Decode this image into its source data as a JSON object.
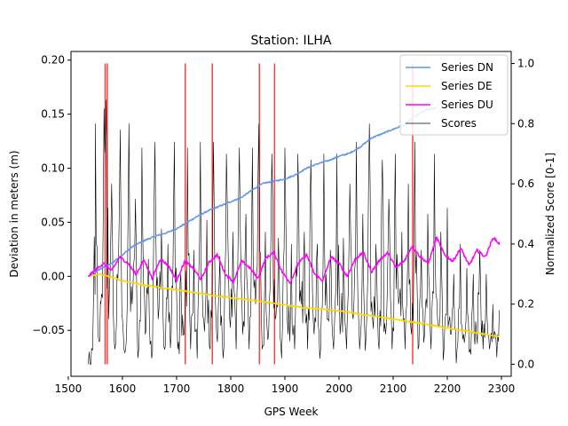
{
  "chart_data": {
    "type": "line",
    "title": "Station: ILHA",
    "xlabel": "GPS Week",
    "ylabel": "Deviation in meters (m)",
    "y2label": "Normalized Score [0-1]",
    "xlim": [
      1505,
      2318
    ],
    "ylim": [
      -0.0925,
      0.208
    ],
    "y2lim": [
      -0.04,
      1.04
    ],
    "x_ticks": [
      1500,
      1600,
      1700,
      1800,
      1900,
      2000,
      2100,
      2200,
      2300
    ],
    "y_ticks": [
      -0.05,
      0.0,
      0.05,
      0.1,
      0.15,
      0.2
    ],
    "y_tick_labels": [
      "−0.05",
      "0.00",
      "0.05",
      "0.10",
      "0.15",
      "0.20"
    ],
    "y2_ticks": [
      0.0,
      0.2,
      0.4,
      0.6,
      0.8,
      1.0
    ],
    "y2_tick_labels": [
      "0.0",
      "0.2",
      "0.4",
      "0.6",
      "0.8",
      "1.0"
    ],
    "x_start": 1537,
    "x_end": 2296,
    "legend_position": "top-right",
    "series": [
      {
        "name": "Series DN",
        "axis": "left",
        "color": "#6495ED",
        "points": [
          [
            1537,
            0.0
          ],
          [
            1560,
            0.007
          ],
          [
            1580,
            0.012
          ],
          [
            1600,
            0.02
          ],
          [
            1620,
            0.028
          ],
          [
            1640,
            0.033
          ],
          [
            1660,
            0.037
          ],
          [
            1680,
            0.04
          ],
          [
            1700,
            0.044
          ],
          [
            1720,
            0.05
          ],
          [
            1740,
            0.056
          ],
          [
            1760,
            0.061
          ],
          [
            1780,
            0.065
          ],
          [
            1800,
            0.069
          ],
          [
            1820,
            0.073
          ],
          [
            1840,
            0.08
          ],
          [
            1860,
            0.086
          ],
          [
            1880,
            0.088
          ],
          [
            1900,
            0.09
          ],
          [
            1920,
            0.094
          ],
          [
            1940,
            0.1
          ],
          [
            1960,
            0.104
          ],
          [
            1980,
            0.107
          ],
          [
            2000,
            0.111
          ],
          [
            2020,
            0.114
          ],
          [
            2040,
            0.12
          ],
          [
            2060,
            0.128
          ],
          [
            2080,
            0.132
          ],
          [
            2100,
            0.136
          ],
          [
            2120,
            0.14
          ],
          [
            2140,
            0.148
          ],
          [
            2160,
            0.154
          ],
          [
            2180,
            0.156
          ]
        ]
      },
      {
        "name": "Series DE",
        "axis": "left",
        "color": "#FFD700",
        "points": [
          [
            1537,
            0.0
          ],
          [
            1560,
            0.002
          ],
          [
            1580,
            -0.001
          ],
          [
            1600,
            -0.004
          ],
          [
            1640,
            -0.008
          ],
          [
            1680,
            -0.011
          ],
          [
            1720,
            -0.014
          ],
          [
            1760,
            -0.017
          ],
          [
            1800,
            -0.02
          ],
          [
            1840,
            -0.022
          ],
          [
            1880,
            -0.025
          ],
          [
            1920,
            -0.028
          ],
          [
            1960,
            -0.03
          ],
          [
            2000,
            -0.032
          ],
          [
            2040,
            -0.035
          ],
          [
            2080,
            -0.038
          ],
          [
            2120,
            -0.041
          ],
          [
            2160,
            -0.044
          ],
          [
            2200,
            -0.048
          ],
          [
            2240,
            -0.051
          ],
          [
            2296,
            -0.056
          ]
        ]
      },
      {
        "name": "Series DU",
        "axis": "left",
        "color": "#FF00FF",
        "points": [
          [
            1537,
            0.0
          ],
          [
            1550,
            0.006
          ],
          [
            1565,
            0.012
          ],
          [
            1580,
            0.005
          ],
          [
            1595,
            0.018
          ],
          [
            1610,
            0.012
          ],
          [
            1625,
            0.002
          ],
          [
            1640,
            0.015
          ],
          [
            1655,
            -0.002
          ],
          [
            1670,
            0.016
          ],
          [
            1685,
            0.01
          ],
          [
            1700,
            -0.004
          ],
          [
            1715,
            0.014
          ],
          [
            1730,
            0.008
          ],
          [
            1745,
            -0.003
          ],
          [
            1760,
            0.013
          ],
          [
            1775,
            0.02
          ],
          [
            1790,
            0.002
          ],
          [
            1805,
            -0.005
          ],
          [
            1820,
            0.014
          ],
          [
            1835,
            0.008
          ],
          [
            1850,
            -0.002
          ],
          [
            1865,
            0.017
          ],
          [
            1880,
            0.022
          ],
          [
            1895,
            0.004
          ],
          [
            1910,
            -0.006
          ],
          [
            1925,
            0.012
          ],
          [
            1940,
            0.02
          ],
          [
            1955,
            0.002
          ],
          [
            1970,
            -0.004
          ],
          [
            1985,
            0.018
          ],
          [
            2000,
            0.012
          ],
          [
            2015,
            0.0
          ],
          [
            2030,
            0.016
          ],
          [
            2045,
            0.022
          ],
          [
            2060,
            0.004
          ],
          [
            2075,
            0.015
          ],
          [
            2090,
            0.022
          ],
          [
            2105,
            0.008
          ],
          [
            2120,
            0.014
          ],
          [
            2135,
            0.028
          ],
          [
            2150,
            0.018
          ],
          [
            2165,
            0.012
          ],
          [
            2180,
            0.036
          ],
          [
            2195,
            0.02
          ],
          [
            2210,
            0.014
          ],
          [
            2225,
            0.026
          ],
          [
            2240,
            0.01
          ],
          [
            2255,
            0.024
          ],
          [
            2270,
            0.018
          ],
          [
            2285,
            0.036
          ],
          [
            2296,
            0.03
          ]
        ]
      },
      {
        "name": "Scores",
        "axis": "right",
        "color": "#000000",
        "points": [
          [
            1537,
            0.0
          ],
          [
            1545,
            0.05
          ],
          [
            1550,
            0.8
          ],
          [
            1555,
            0.1
          ],
          [
            1560,
            0.2
          ],
          [
            1566,
            0.85
          ],
          [
            1570,
            0.88
          ],
          [
            1576,
            0.25
          ],
          [
            1580,
            0.6
          ],
          [
            1586,
            0.05
          ],
          [
            1590,
            0.3
          ],
          [
            1596,
            0.78
          ],
          [
            1600,
            0.15
          ],
          [
            1606,
            0.05
          ],
          [
            1612,
            0.8
          ],
          [
            1618,
            0.2
          ],
          [
            1624,
            0.55
          ],
          [
            1630,
            0.05
          ],
          [
            1636,
            0.72
          ],
          [
            1642,
            0.1
          ],
          [
            1648,
            0.35
          ],
          [
            1654,
            0.02
          ],
          [
            1660,
            0.74
          ],
          [
            1666,
            0.15
          ],
          [
            1672,
            0.45
          ],
          [
            1678,
            0.05
          ],
          [
            1684,
            0.4
          ],
          [
            1690,
            0.1
          ],
          [
            1696,
            0.74
          ],
          [
            1702,
            0.05
          ],
          [
            1708,
            0.3
          ],
          [
            1714,
            0.1
          ],
          [
            1720,
            0.72
          ],
          [
            1726,
            0.05
          ],
          [
            1732,
            0.38
          ],
          [
            1738,
            0.02
          ],
          [
            1744,
            0.74
          ],
          [
            1750,
            0.15
          ],
          [
            1756,
            0.48
          ],
          [
            1762,
            0.05
          ],
          [
            1768,
            0.74
          ],
          [
            1774,
            0.1
          ],
          [
            1780,
            0.36
          ],
          [
            1786,
            0.02
          ],
          [
            1792,
            0.7
          ],
          [
            1798,
            0.15
          ],
          [
            1804,
            0.44
          ],
          [
            1810,
            0.05
          ],
          [
            1816,
            0.72
          ],
          [
            1822,
            0.1
          ],
          [
            1828,
            0.5
          ],
          [
            1834,
            0.05
          ],
          [
            1840,
            0.72
          ],
          [
            1846,
            0.2
          ],
          [
            1852,
            0.8
          ],
          [
            1858,
            0.05
          ],
          [
            1864,
            0.44
          ],
          [
            1870,
            0.1
          ],
          [
            1876,
            0.7
          ],
          [
            1882,
            0.15
          ],
          [
            1888,
            0.42
          ],
          [
            1894,
            0.02
          ],
          [
            1900,
            0.72
          ],
          [
            1906,
            0.1
          ],
          [
            1912,
            0.4
          ],
          [
            1918,
            0.05
          ],
          [
            1924,
            0.7
          ],
          [
            1930,
            0.2
          ],
          [
            1936,
            0.44
          ],
          [
            1942,
            0.05
          ],
          [
            1948,
            0.68
          ],
          [
            1954,
            0.1
          ],
          [
            1960,
            0.4
          ],
          [
            1966,
            0.05
          ],
          [
            1972,
            0.7
          ],
          [
            1978,
            0.15
          ],
          [
            1984,
            0.38
          ],
          [
            1990,
            0.05
          ],
          [
            1996,
            0.7
          ],
          [
            2002,
            0.1
          ],
          [
            2008,
            0.42
          ],
          [
            2014,
            0.05
          ],
          [
            2020,
            0.6
          ],
          [
            2026,
            0.15
          ],
          [
            2032,
            0.74
          ],
          [
            2038,
            0.05
          ],
          [
            2044,
            0.5
          ],
          [
            2050,
            0.1
          ],
          [
            2056,
            0.8
          ],
          [
            2062,
            0.15
          ],
          [
            2068,
            0.4
          ],
          [
            2074,
            0.05
          ],
          [
            2080,
            0.68
          ],
          [
            2086,
            0.1
          ],
          [
            2092,
            0.55
          ],
          [
            2098,
            0.05
          ],
          [
            2104,
            0.7
          ],
          [
            2110,
            0.2
          ],
          [
            2116,
            0.44
          ],
          [
            2122,
            0.05
          ],
          [
            2128,
            0.6
          ],
          [
            2134,
            0.1
          ],
          [
            2140,
            0.74
          ],
          [
            2146,
            0.05
          ],
          [
            2152,
            0.38
          ],
          [
            2158,
            0.1
          ],
          [
            2164,
            0.5
          ],
          [
            2170,
            0.05
          ],
          [
            2176,
            0.7
          ],
          [
            2182,
            0.15
          ],
          [
            2188,
            0.44
          ],
          [
            2194,
            0.05
          ],
          [
            2200,
            0.52
          ],
          [
            2206,
            0.1
          ],
          [
            2212,
            0.3
          ],
          [
            2218,
            0.05
          ],
          [
            2224,
            0.4
          ],
          [
            2230,
            0.1
          ],
          [
            2236,
            0.32
          ],
          [
            2242,
            0.05
          ],
          [
            2248,
            0.3
          ],
          [
            2254,
            0.1
          ],
          [
            2260,
            0.38
          ],
          [
            2266,
            0.05
          ],
          [
            2272,
            0.3
          ],
          [
            2278,
            0.05
          ],
          [
            2284,
            0.2
          ],
          [
            2290,
            0.08
          ],
          [
            2296,
            0.18
          ]
        ]
      }
    ],
    "anomaly_lines": {
      "color": "#FF0000",
      "x": [
        1568,
        1572,
        1716,
        1766,
        1853,
        1881,
        2136
      ]
    }
  }
}
